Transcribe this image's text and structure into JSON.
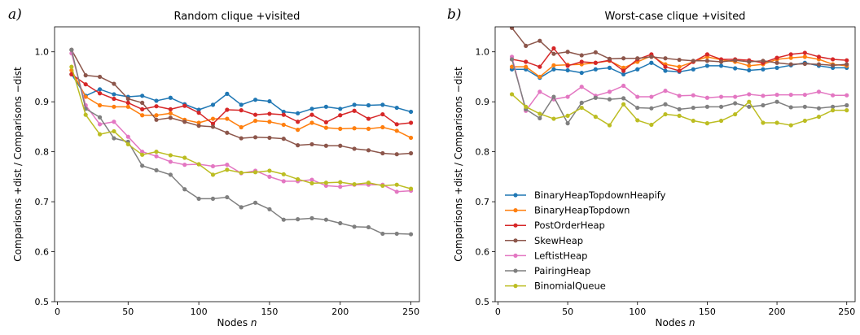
{
  "colors": {
    "BinaryHeapTopdownHeapify": "#1f77b4",
    "BinaryHeapTopdown": "#ff7f0e",
    "PostOrderHeap": "#d62728",
    "SkewHeap": "#8c564b",
    "LeftistHeap": "#e377c2",
    "PairingHeap": "#7f7f7f",
    "BinomialQueue": "#bcbd22"
  },
  "chart_data": [
    {
      "type": "line",
      "panel_label": "a)",
      "title": "Random clique +visited",
      "xlabel_text": "Nodes",
      "xlabel_var": "n",
      "ylabel": "Comparisons +dist / Comparisons −dist",
      "xlim": [
        -2,
        256
      ],
      "ylim": [
        0.5,
        1.05
      ],
      "xticks": [
        0,
        50,
        100,
        150,
        200,
        250
      ],
      "yticks": [
        0.5,
        0.6,
        0.7,
        0.8,
        0.9,
        1.0
      ],
      "xtick_labels": [
        "0",
        "50",
        "100",
        "150",
        "200",
        "250"
      ],
      "ytick_labels": [
        "0.5",
        "0.6",
        "0.7",
        "0.8",
        "0.9",
        "1.0"
      ],
      "grid": false,
      "x": [
        10,
        20,
        30,
        40,
        50,
        60,
        70,
        80,
        90,
        100,
        110,
        120,
        130,
        140,
        150,
        160,
        170,
        180,
        190,
        200,
        210,
        220,
        230,
        240,
        250
      ],
      "series": [
        {
          "name": "BinaryHeapTopdownHeapify",
          "values": [
            0.955,
            0.912,
            0.925,
            0.915,
            0.91,
            0.912,
            0.902,
            0.908,
            0.895,
            0.884,
            0.894,
            0.916,
            0.894,
            0.904,
            0.901,
            0.88,
            0.877,
            0.886,
            0.89,
            0.886,
            0.894,
            0.893,
            0.894,
            0.888,
            0.88
          ]
        },
        {
          "name": "BinaryHeapTopdown",
          "values": [
            0.963,
            0.91,
            0.893,
            0.89,
            0.89,
            0.873,
            0.873,
            0.877,
            0.864,
            0.858,
            0.866,
            0.866,
            0.849,
            0.862,
            0.86,
            0.854,
            0.844,
            0.858,
            0.848,
            0.846,
            0.847,
            0.846,
            0.849,
            0.842,
            0.828
          ]
        },
        {
          "name": "PostOrderHeap",
          "values": [
            0.955,
            0.935,
            0.917,
            0.906,
            0.898,
            0.885,
            0.891,
            0.885,
            0.892,
            0.878,
            0.856,
            0.884,
            0.883,
            0.874,
            0.876,
            0.874,
            0.86,
            0.874,
            0.859,
            0.873,
            0.882,
            0.866,
            0.875,
            0.855,
            0.858
          ]
        },
        {
          "name": "SkewHeap",
          "values": [
            1.004,
            0.953,
            0.95,
            0.936,
            0.906,
            0.898,
            0.864,
            0.868,
            0.86,
            0.852,
            0.85,
            0.838,
            0.827,
            0.829,
            0.828,
            0.826,
            0.813,
            0.815,
            0.812,
            0.812,
            0.806,
            0.803,
            0.797,
            0.795,
            0.797
          ]
        },
        {
          "name": "LeftistHeap",
          "values": [
            0.997,
            0.893,
            0.855,
            0.86,
            0.83,
            0.8,
            0.791,
            0.78,
            0.774,
            0.775,
            0.771,
            0.774,
            0.757,
            0.762,
            0.75,
            0.741,
            0.741,
            0.744,
            0.732,
            0.73,
            0.734,
            0.734,
            0.734,
            0.72,
            0.722
          ]
        },
        {
          "name": "PairingHeap",
          "values": [
            1.004,
            0.886,
            0.869,
            0.827,
            0.82,
            0.772,
            0.763,
            0.754,
            0.725,
            0.706,
            0.706,
            0.709,
            0.689,
            0.698,
            0.685,
            0.664,
            0.665,
            0.667,
            0.664,
            0.657,
            0.65,
            0.649,
            0.636,
            0.636,
            0.635
          ]
        },
        {
          "name": "BinomialQueue",
          "values": [
            0.97,
            0.874,
            0.835,
            0.841,
            0.815,
            0.794,
            0.8,
            0.793,
            0.788,
            0.775,
            0.754,
            0.764,
            0.758,
            0.759,
            0.762,
            0.755,
            0.745,
            0.737,
            0.738,
            0.739,
            0.735,
            0.738,
            0.732,
            0.734,
            0.726
          ]
        }
      ]
    },
    {
      "type": "line",
      "panel_label": "b)",
      "title": "Worst-case clique +visited",
      "xlabel_text": "Nodes",
      "xlabel_var": "n",
      "ylabel": "Comparisons +dist / Comparisons −dist",
      "xlim": [
        -2,
        256
      ],
      "ylim": [
        0.5,
        1.05
      ],
      "xticks": [
        0,
        50,
        100,
        150,
        200,
        250
      ],
      "yticks": [
        0.5,
        0.6,
        0.7,
        0.8,
        0.9,
        1.0
      ],
      "xtick_labels": [
        "0",
        "50",
        "100",
        "150",
        "200",
        "250"
      ],
      "ytick_labels": [
        "0.5",
        "0.6",
        "0.7",
        "0.8",
        "0.9",
        "1.0"
      ],
      "grid": false,
      "legend_position": "lower-left",
      "x": [
        10,
        20,
        30,
        40,
        50,
        60,
        70,
        80,
        90,
        100,
        110,
        120,
        130,
        140,
        150,
        160,
        170,
        180,
        190,
        200,
        210,
        220,
        230,
        240,
        250
      ],
      "series": [
        {
          "name": "BinaryHeapTopdownHeapify",
          "values": [
            0.965,
            0.965,
            0.948,
            0.965,
            0.963,
            0.958,
            0.965,
            0.968,
            0.955,
            0.965,
            0.978,
            0.962,
            0.96,
            0.965,
            0.972,
            0.972,
            0.967,
            0.963,
            0.965,
            0.968,
            0.973,
            0.978,
            0.972,
            0.968,
            0.968
          ]
        },
        {
          "name": "BinaryHeapTopdown",
          "values": [
            0.97,
            0.97,
            0.95,
            0.973,
            0.974,
            0.975,
            0.978,
            0.982,
            0.968,
            0.98,
            0.992,
            0.975,
            0.97,
            0.98,
            0.99,
            0.984,
            0.98,
            0.972,
            0.975,
            0.985,
            0.988,
            0.99,
            0.985,
            0.975,
            0.972
          ]
        },
        {
          "name": "PostOrderHeap",
          "values": [
            0.985,
            0.98,
            0.97,
            1.007,
            0.972,
            0.98,
            0.978,
            0.983,
            0.962,
            0.985,
            0.995,
            0.97,
            0.962,
            0.98,
            0.995,
            0.985,
            0.985,
            0.983,
            0.978,
            0.988,
            0.995,
            0.998,
            0.99,
            0.985,
            0.983
          ]
        },
        {
          "name": "SkewHeap",
          "values": [
            1.048,
            1.012,
            1.022,
            0.996,
            1.0,
            0.993,
            0.999,
            0.986,
            0.987,
            0.987,
            0.99,
            0.987,
            0.984,
            0.982,
            0.982,
            0.98,
            0.983,
            0.98,
            0.982,
            0.978,
            0.975,
            0.976,
            0.975,
            0.973,
            0.975
          ]
        },
        {
          "name": "LeftistHeap",
          "values": [
            0.99,
            0.882,
            0.92,
            0.905,
            0.91,
            0.93,
            0.912,
            0.92,
            0.932,
            0.91,
            0.91,
            0.922,
            0.912,
            0.913,
            0.908,
            0.91,
            0.91,
            0.915,
            0.912,
            0.914,
            0.914,
            0.914,
            0.92,
            0.913,
            0.913
          ]
        },
        {
          "name": "PairingHeap",
          "values": [
            0.985,
            0.885,
            0.867,
            0.91,
            0.857,
            0.898,
            0.908,
            0.905,
            0.907,
            0.888,
            0.887,
            0.895,
            0.885,
            0.888,
            0.89,
            0.89,
            0.897,
            0.89,
            0.893,
            0.9,
            0.889,
            0.89,
            0.887,
            0.89,
            0.893
          ]
        },
        {
          "name": "BinomialQueue",
          "values": [
            0.915,
            0.89,
            0.876,
            0.866,
            0.872,
            0.888,
            0.87,
            0.853,
            0.895,
            0.863,
            0.854,
            0.875,
            0.872,
            0.862,
            0.857,
            0.862,
            0.875,
            0.9,
            0.858,
            0.858,
            0.853,
            0.862,
            0.87,
            0.883,
            0.883
          ]
        }
      ]
    }
  ]
}
